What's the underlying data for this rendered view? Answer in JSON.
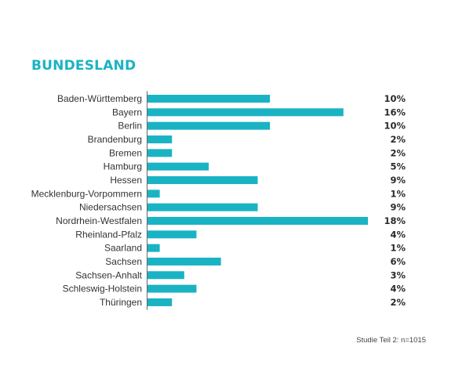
{
  "title": "BUNDESLAND",
  "footnote": "Studie Teil 2: n=1015",
  "colors": {
    "accent": "#1ab3c4",
    "bar": "#1ab3c4",
    "text": "#333333",
    "axis": "#666666"
  },
  "chart_data": {
    "type": "bar",
    "orientation": "horizontal",
    "title": "BUNDESLAND",
    "xlabel": "",
    "ylabel": "",
    "unit": "%",
    "xlim": [
      0,
      18
    ],
    "grid": false,
    "legend": "none",
    "categories": [
      "Baden-Württemberg",
      "Bayern",
      "Berlin",
      "Brandenburg",
      "Bremen",
      "Hamburg",
      "Hessen",
      "Mecklenburg-Vorpommern",
      "Niedersachsen",
      "Nordrhein-Westfalen",
      "Rheinland-Pfalz",
      "Saarland",
      "Sachsen",
      "Sachsen-Anhalt",
      "Schleswig-Holstein",
      "Thüringen"
    ],
    "values": [
      10,
      16,
      10,
      2,
      2,
      5,
      9,
      1,
      9,
      18,
      4,
      1,
      6,
      3,
      4,
      2
    ],
    "value_labels": [
      "10%",
      "16%",
      "10%",
      "2%",
      "2%",
      "5%",
      "9%",
      "1%",
      "9%",
      "18%",
      "4%",
      "1%",
      "6%",
      "3%",
      "4%",
      "2%"
    ]
  }
}
